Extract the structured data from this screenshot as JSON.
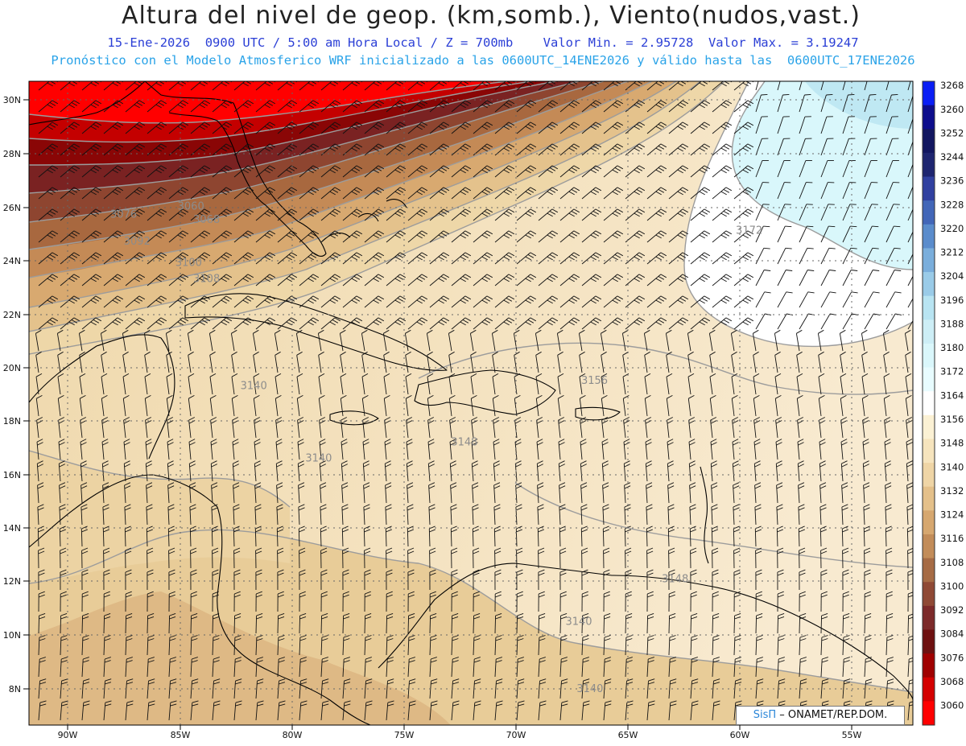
{
  "header": {
    "title": "Altura del nivel de geop. (km,somb.), Viento(nudos,vast.)",
    "subtitle_line1": "15-Ene-2026  0900 UTC / 5:00 am Hora Local / Z = 700mb    Valor Min. = 2.95728  Valor Max. = 3.19247",
    "subtitle_line2": "Pronóstico con el Modelo Atmosferico WRF inicializado a las 0600UTC_14ENE2026 y válido hasta las  0600UTC_17ENE2026"
  },
  "axes": {
    "lat_labels": [
      "30N",
      "28N",
      "26N",
      "24N",
      "22N",
      "20N",
      "18N",
      "16N",
      "14N",
      "12N",
      "10N",
      "8N"
    ],
    "lon_labels": [
      "90W",
      "85W",
      "80W",
      "75W",
      "70W",
      "65W",
      "60W",
      "55W"
    ]
  },
  "colorbar": {
    "levels": [
      "3268",
      "3260",
      "3252",
      "3244",
      "3236",
      "3228",
      "3220",
      "3212",
      "3204",
      "3196",
      "3188",
      "3180",
      "3172",
      "3164",
      "3156",
      "3148",
      "3140",
      "3132",
      "3124",
      "3116",
      "3108",
      "3100",
      "3092",
      "3084",
      "3076",
      "3068",
      "3060"
    ],
    "colors": [
      "#0a1ef5",
      "#0d0d8c",
      "#121660",
      "#1e2570",
      "#3040a0",
      "#4266b8",
      "#5a8ccc",
      "#7aaedc",
      "#9acbe8",
      "#b8e4f2",
      "#cdeef6",
      "#daf7fb",
      "#e8fcff",
      "#ffffff",
      "#fbf1d4",
      "#f6e4bd",
      "#efd5a6",
      "#e4c08a",
      "#d6a76f",
      "#c28c59",
      "#a66b45",
      "#8f4935",
      "#7c2a2a",
      "#6e1010",
      "#a00000",
      "#d40000",
      "#ff0000"
    ]
  },
  "contour_labels": [
    {
      "text": "3060",
      "lon": -84.5,
      "lat": 25.9
    },
    {
      "text": "3068",
      "lon": -83.8,
      "lat": 25.4
    },
    {
      "text": "3076",
      "lon": -87.5,
      "lat": 25.6
    },
    {
      "text": "3092",
      "lon": -86.9,
      "lat": 24.6
    },
    {
      "text": "3100",
      "lon": -84.6,
      "lat": 23.8
    },
    {
      "text": "3108",
      "lon": -83.8,
      "lat": 23.2
    },
    {
      "text": "3140",
      "lon": -81.7,
      "lat": 19.2
    },
    {
      "text": "3140",
      "lon": -78.8,
      "lat": 16.5
    },
    {
      "text": "3148",
      "lon": -72.3,
      "lat": 17.1
    },
    {
      "text": "3156",
      "lon": -66.5,
      "lat": 19.4
    },
    {
      "text": "3172",
      "lon": -59.6,
      "lat": 25.0
    },
    {
      "text": "3148",
      "lon": -62.9,
      "lat": 12.0
    },
    {
      "text": "3140",
      "lon": -67.2,
      "lat": 10.4
    },
    {
      "text": "3140",
      "lon": -66.7,
      "lat": 7.9
    }
  ],
  "credit": {
    "sis": "SisΠ",
    "org": "– ONAMET/REP.DOM."
  }
}
